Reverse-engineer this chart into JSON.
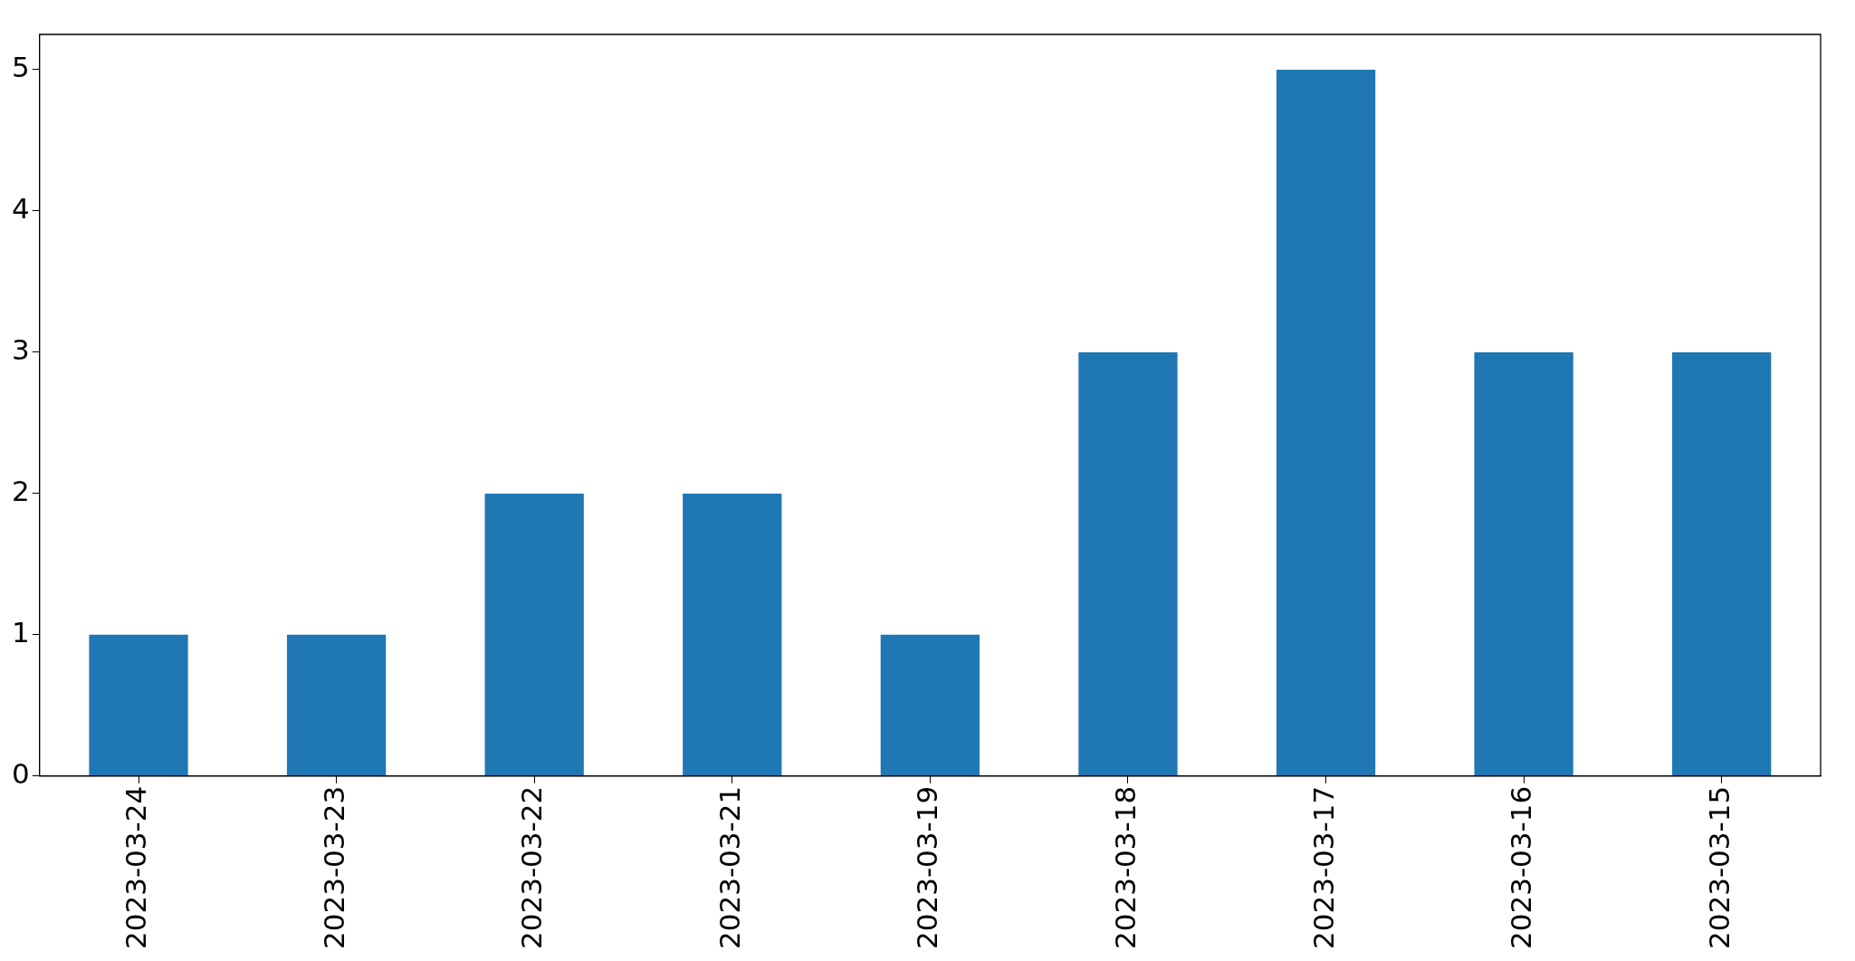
{
  "chart_data": {
    "type": "bar",
    "categories": [
      "2023-03-24",
      "2023-03-23",
      "2023-03-22",
      "2023-03-21",
      "2023-03-19",
      "2023-03-18",
      "2023-03-17",
      "2023-03-16",
      "2023-03-15"
    ],
    "values": [
      1,
      1,
      2,
      2,
      1,
      3,
      5,
      3,
      3
    ],
    "color": "#1f77b4",
    "ylim": [
      0,
      5.25
    ],
    "yticks": [
      0,
      1,
      2,
      3,
      4,
      5
    ],
    "grid": false,
    "legend": false
  }
}
